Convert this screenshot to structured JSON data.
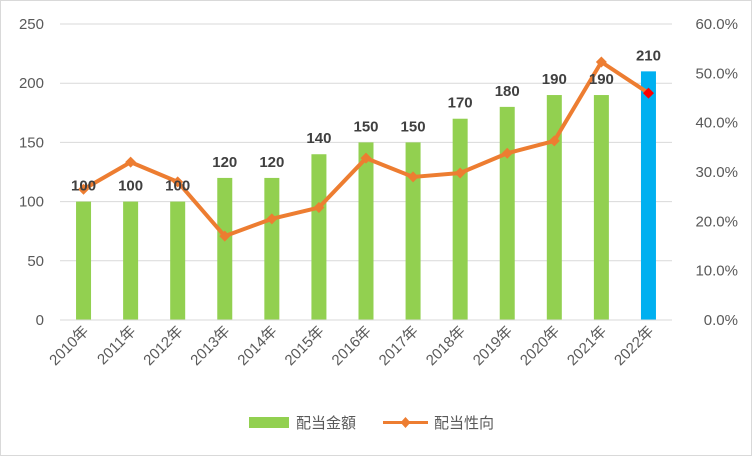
{
  "chart_data": {
    "type": "bar",
    "categories": [
      "2010年",
      "2011年",
      "2012年",
      "2013年",
      "2014年",
      "2015年",
      "2016年",
      "2017年",
      "2018年",
      "2019年",
      "2020年",
      "2021年",
      "2022年"
    ],
    "series": [
      {
        "name": "配当金額",
        "type": "bar",
        "axis": "left",
        "values": [
          100,
          100,
          100,
          120,
          120,
          140,
          150,
          150,
          170,
          180,
          190,
          190,
          210
        ],
        "data_labels": [
          "100",
          "100",
          "100",
          "120",
          "120",
          "140",
          "150",
          "150",
          "170",
          "180",
          "190",
          "190",
          "210"
        ],
        "color": "#92d050",
        "highlight_color": "#00b0f0",
        "highlight_index": 12
      },
      {
        "name": "配当性向",
        "type": "line",
        "axis": "right",
        "values": [
          26.5,
          32.0,
          28.0,
          17.0,
          20.5,
          22.8,
          32.8,
          29.0,
          29.8,
          33.8,
          36.3,
          52.3,
          46.0
        ],
        "color": "#ed7d31",
        "highlight_color": "#ff0000",
        "highlight_index": 12
      }
    ],
    "y_left": {
      "min": 0,
      "max": 250,
      "ticks": [
        "0",
        "50",
        "100",
        "150",
        "200",
        "250"
      ]
    },
    "y_right": {
      "min": 0,
      "max": 60,
      "ticks": [
        "0.0%",
        "10.0%",
        "20.0%",
        "30.0%",
        "40.0%",
        "50.0%",
        "60.0%"
      ]
    },
    "grid": true,
    "legend_position": "bottom"
  },
  "legend": {
    "bar_label": "配当金額",
    "line_label": "配当性向"
  }
}
